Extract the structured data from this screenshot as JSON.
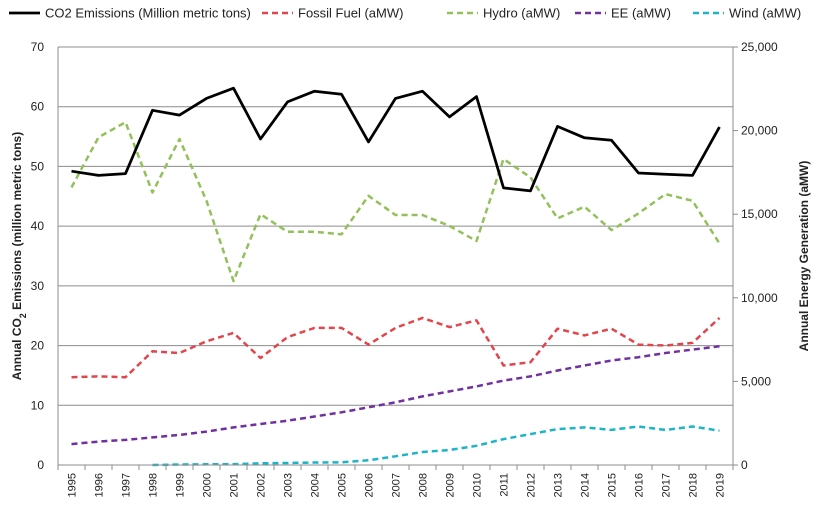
{
  "chart_data": {
    "type": "line",
    "x": [
      1995,
      1996,
      1997,
      1998,
      1999,
      2000,
      2001,
      2002,
      2003,
      2004,
      2005,
      2006,
      2007,
      2008,
      2009,
      2010,
      2011,
      2012,
      2013,
      2014,
      2015,
      2016,
      2017,
      2018,
      2019
    ],
    "ylabel_left_main": "Annual CO",
    "ylabel_left_sub": "2",
    "ylabel_left_rest": " Emissions (million metric tons)",
    "ylabel_right": "Annual Energy Generation (aMW)",
    "ylim_left": [
      0,
      70
    ],
    "ylim_right": [
      0,
      25000
    ],
    "yticks_left": [
      "0",
      "10",
      "20",
      "30",
      "40",
      "50",
      "60",
      "70"
    ],
    "yticks_right": [
      "0",
      "5,000",
      "10,000",
      "15,000",
      "20,000",
      "25,000"
    ],
    "legend_position": "top",
    "grid": "horizontal",
    "series": [
      {
        "name": "CO2 Emissions (Million metric tons)",
        "axis": "left",
        "color": "#000000",
        "dash": "solid",
        "values": [
          49.2,
          48.5,
          48.8,
          59.4,
          58.6,
          61.4,
          63.1,
          54.6,
          60.8,
          62.6,
          62.1,
          54.1,
          61.4,
          62.6,
          58.3,
          61.7,
          46.4,
          45.9,
          56.7,
          54.8,
          54.4,
          48.9,
          48.7,
          48.5,
          56.6
        ]
      },
      {
        "name": "Fossil Fuel (aMW)",
        "axis": "right",
        "color": "#e0474c",
        "dash": "dashed",
        "values": [
          5250,
          5300,
          5250,
          6800,
          6700,
          7400,
          7900,
          6400,
          7650,
          8200,
          8200,
          7200,
          8200,
          8800,
          8250,
          8650,
          5950,
          6150,
          8150,
          7750,
          8150,
          7200,
          7150,
          7300,
          8800
        ]
      },
      {
        "name": "Hydro (aMW)",
        "axis": "right",
        "color": "#92c05a",
        "dash": "dashed",
        "values": [
          16600,
          19600,
          20500,
          16300,
          19500,
          15800,
          11000,
          15000,
          13950,
          13950,
          13800,
          16100,
          14950,
          14950,
          14300,
          13400,
          18300,
          17200,
          14750,
          15450,
          14050,
          15050,
          16200,
          15800,
          13250
        ]
      },
      {
        "name": "EE (aMW)",
        "axis": "right",
        "color": "#7030a0",
        "dash": "dashed",
        "values": [
          1250,
          1400,
          1500,
          1650,
          1800,
          2000,
          2250,
          2450,
          2650,
          2900,
          3150,
          3450,
          3750,
          4100,
          4400,
          4700,
          5050,
          5300,
          5650,
          5950,
          6250,
          6450,
          6700,
          6900,
          7100
        ]
      },
      {
        "name": "Wind (aMW)",
        "axis": "right",
        "color": "#1eb4c8",
        "dash": "dashed",
        "values": [
          null,
          null,
          null,
          0,
          30,
          40,
          50,
          100,
          120,
          150,
          160,
          280,
          520,
          780,
          900,
          1150,
          1550,
          1850,
          2150,
          2250,
          2100,
          2300,
          2100,
          2300,
          2050
        ]
      }
    ]
  }
}
